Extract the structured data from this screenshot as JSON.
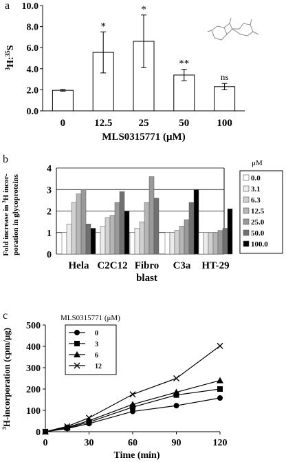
{
  "chart_data": [
    {
      "panel": "a",
      "type": "bar",
      "xlabel": "MLS0315771 (μM)",
      "ylabel": "3H:35S",
      "ylabel_sup": "3",
      "ylabel_main": "H:",
      "ylabel_sup2": "35",
      "ylabel_end": "S",
      "categories": [
        "0",
        "12.5",
        "25",
        "50",
        "100"
      ],
      "values": [
        1.95,
        5.55,
        6.6,
        3.4,
        2.3
      ],
      "errors": [
        0.08,
        1.95,
        2.5,
        0.55,
        0.3
      ],
      "annotations": [
        "",
        "*",
        "*",
        "**",
        "ns"
      ],
      "ylim": [
        0,
        10
      ],
      "yticks": [
        "0.0",
        "2.0",
        "4.0",
        "6.0",
        "8.0",
        "10.0"
      ],
      "bar_fill": "#ffffff"
    },
    {
      "panel": "b",
      "type": "bar",
      "ylabel_lines": [
        "Fold increase in 3H incor-",
        "poration in glycoproteins"
      ],
      "ylim": [
        0,
        4
      ],
      "yticks": [
        "0",
        "1",
        "2",
        "3",
        "4"
      ],
      "categories": [
        "Hela",
        "C2C12",
        "Fibro\nblast",
        "C3a",
        "HT-29"
      ],
      "category_lines": [
        [
          "Hela"
        ],
        [
          "C2C12"
        ],
        [
          "Fibro",
          "blast"
        ],
        [
          "C3a"
        ],
        [
          "HT-29"
        ]
      ],
      "legend_title": "μM",
      "series": [
        {
          "name": "0.0",
          "color": "#ffffff",
          "values": [
            1.0,
            1.0,
            1.0,
            1.0,
            1.0
          ]
        },
        {
          "name": "3.1",
          "color": "#ebebeb",
          "values": [
            1.4,
            1.3,
            1.2,
            1.0,
            1.0
          ]
        },
        {
          "name": "6.3",
          "color": "#d0d0d0",
          "values": [
            2.4,
            1.7,
            1.5,
            1.1,
            1.0
          ]
        },
        {
          "name": "12.5",
          "color": "#b6b6b6",
          "values": [
            2.8,
            1.8,
            2.4,
            1.3,
            1.0
          ]
        },
        {
          "name": "25.0",
          "color": "#9a9a9a",
          "values": [
            3.0,
            2.4,
            3.6,
            1.6,
            1.1
          ]
        },
        {
          "name": "50.0",
          "color": "#707070",
          "values": [
            1.4,
            2.9,
            2.6,
            2.4,
            1.2
          ]
        },
        {
          "name": "100.0",
          "color": "#000000",
          "values": [
            1.2,
            2.0,
            null,
            3.0,
            2.1
          ]
        }
      ]
    },
    {
      "panel": "c",
      "type": "line",
      "xlabel": "Time (min)",
      "ylabel": "3H-incorporation (cpm/μg)",
      "ylabel_sup": "3",
      "ylabel_rest": "H-incorporation (cpm/μg)",
      "legend_title": "MLS0315771 (μM)",
      "x": [
        0,
        15,
        30,
        60,
        90,
        120
      ],
      "xlim": [
        0,
        120
      ],
      "xticks": [
        "0",
        "30",
        "60",
        "90",
        "120"
      ],
      "ylim": [
        0,
        500
      ],
      "yticks": [
        "0",
        "100",
        "200",
        "300",
        "400",
        "500"
      ],
      "series": [
        {
          "name": "0",
          "marker": "circle",
          "values": [
            0,
            15,
            38,
            95,
            122,
            158
          ]
        },
        {
          "name": "3",
          "marker": "square",
          "values": [
            0,
            18,
            45,
            115,
            172,
            200
          ]
        },
        {
          "name": "6",
          "marker": "triangle",
          "values": [
            0,
            20,
            52,
            128,
            185,
            240
          ]
        },
        {
          "name": "12",
          "marker": "x",
          "values": [
            0,
            25,
            65,
            175,
            250,
            402
          ]
        }
      ]
    }
  ],
  "panel_labels": [
    "a",
    "b",
    "c"
  ],
  "inset": {
    "structure_icon": "benzisothiazolone-structure-icon"
  }
}
